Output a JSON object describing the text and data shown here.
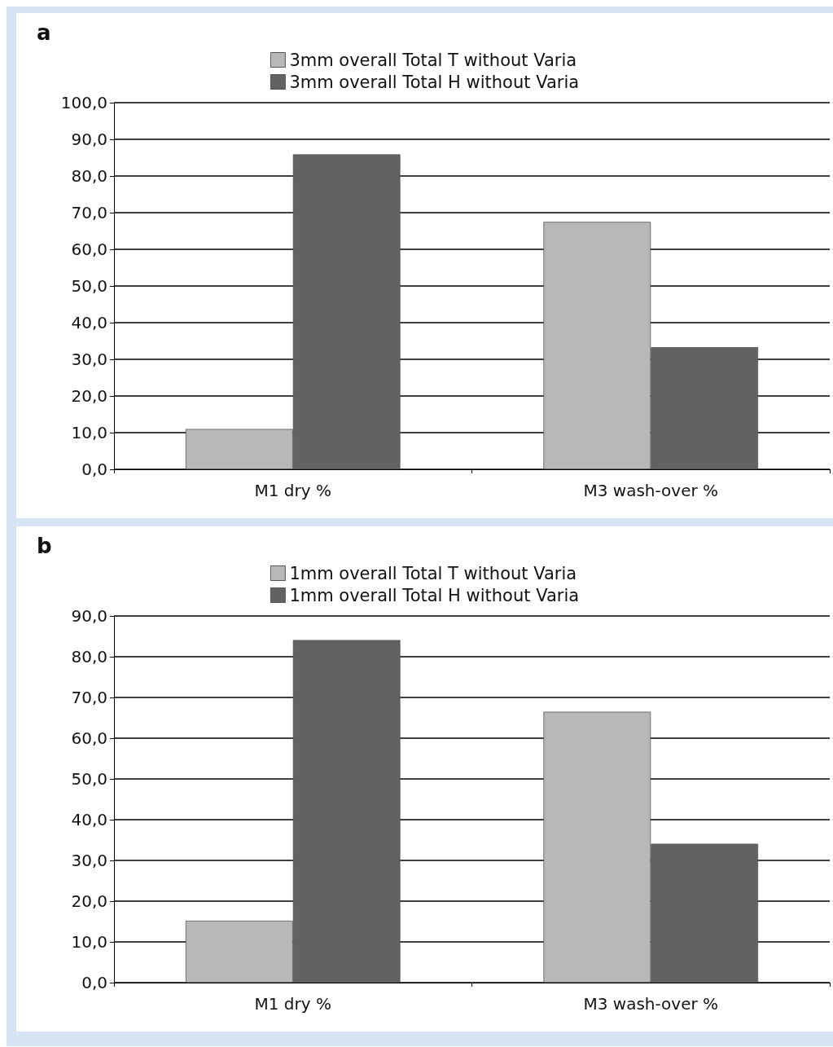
{
  "chart_data": [
    {
      "type": "bar",
      "title": "a",
      "categories": [
        "M1 dry %",
        "M3 wash-over %"
      ],
      "series": [
        {
          "name": "3mm overall Total T without Varia",
          "color": "#b8b8b8",
          "values": [
            11.0,
            67.5
          ]
        },
        {
          "name": "3mm overall Total H without Varia",
          "color": "#626262",
          "values": [
            85.9,
            33.3
          ]
        }
      ],
      "ylim": [
        0,
        100
      ],
      "yticks": [
        {
          "value": 0,
          "label": "0,0"
        },
        {
          "value": 10,
          "label": "10,0"
        },
        {
          "value": 20,
          "label": "20,0"
        },
        {
          "value": 30,
          "label": "30,0"
        },
        {
          "value": 40,
          "label": "40,0"
        },
        {
          "value": 50,
          "label": "50,0"
        },
        {
          "value": 60,
          "label": "60,0"
        },
        {
          "value": 70,
          "label": "70,0"
        },
        {
          "value": 80,
          "label": "80,0"
        },
        {
          "value": 90,
          "label": "90,0"
        },
        {
          "value": 100,
          "label": "100,0"
        }
      ],
      "grid": "y",
      "legend": "top"
    },
    {
      "type": "bar",
      "title": "b",
      "categories": [
        "M1 dry %",
        "M3 wash-over %"
      ],
      "series": [
        {
          "name": "1mm overall Total T without Varia",
          "color": "#b8b8b8",
          "values": [
            15.2,
            66.5
          ]
        },
        {
          "name": "1mm overall Total H without Varia",
          "color": "#626262",
          "values": [
            84.1,
            34.1
          ]
        }
      ],
      "ylim": [
        0,
        90
      ],
      "yticks": [
        {
          "value": 0,
          "label": "0,0"
        },
        {
          "value": 10,
          "label": "10,0"
        },
        {
          "value": 20,
          "label": "20,0"
        },
        {
          "value": 30,
          "label": "30,0"
        },
        {
          "value": 40,
          "label": "40,0"
        },
        {
          "value": 50,
          "label": "50,0"
        },
        {
          "value": 60,
          "label": "60,0"
        },
        {
          "value": 70,
          "label": "70,0"
        },
        {
          "value": 80,
          "label": "80,0"
        },
        {
          "value": 90,
          "label": "90,0"
        }
      ],
      "grid": "y",
      "legend": "top"
    }
  ]
}
